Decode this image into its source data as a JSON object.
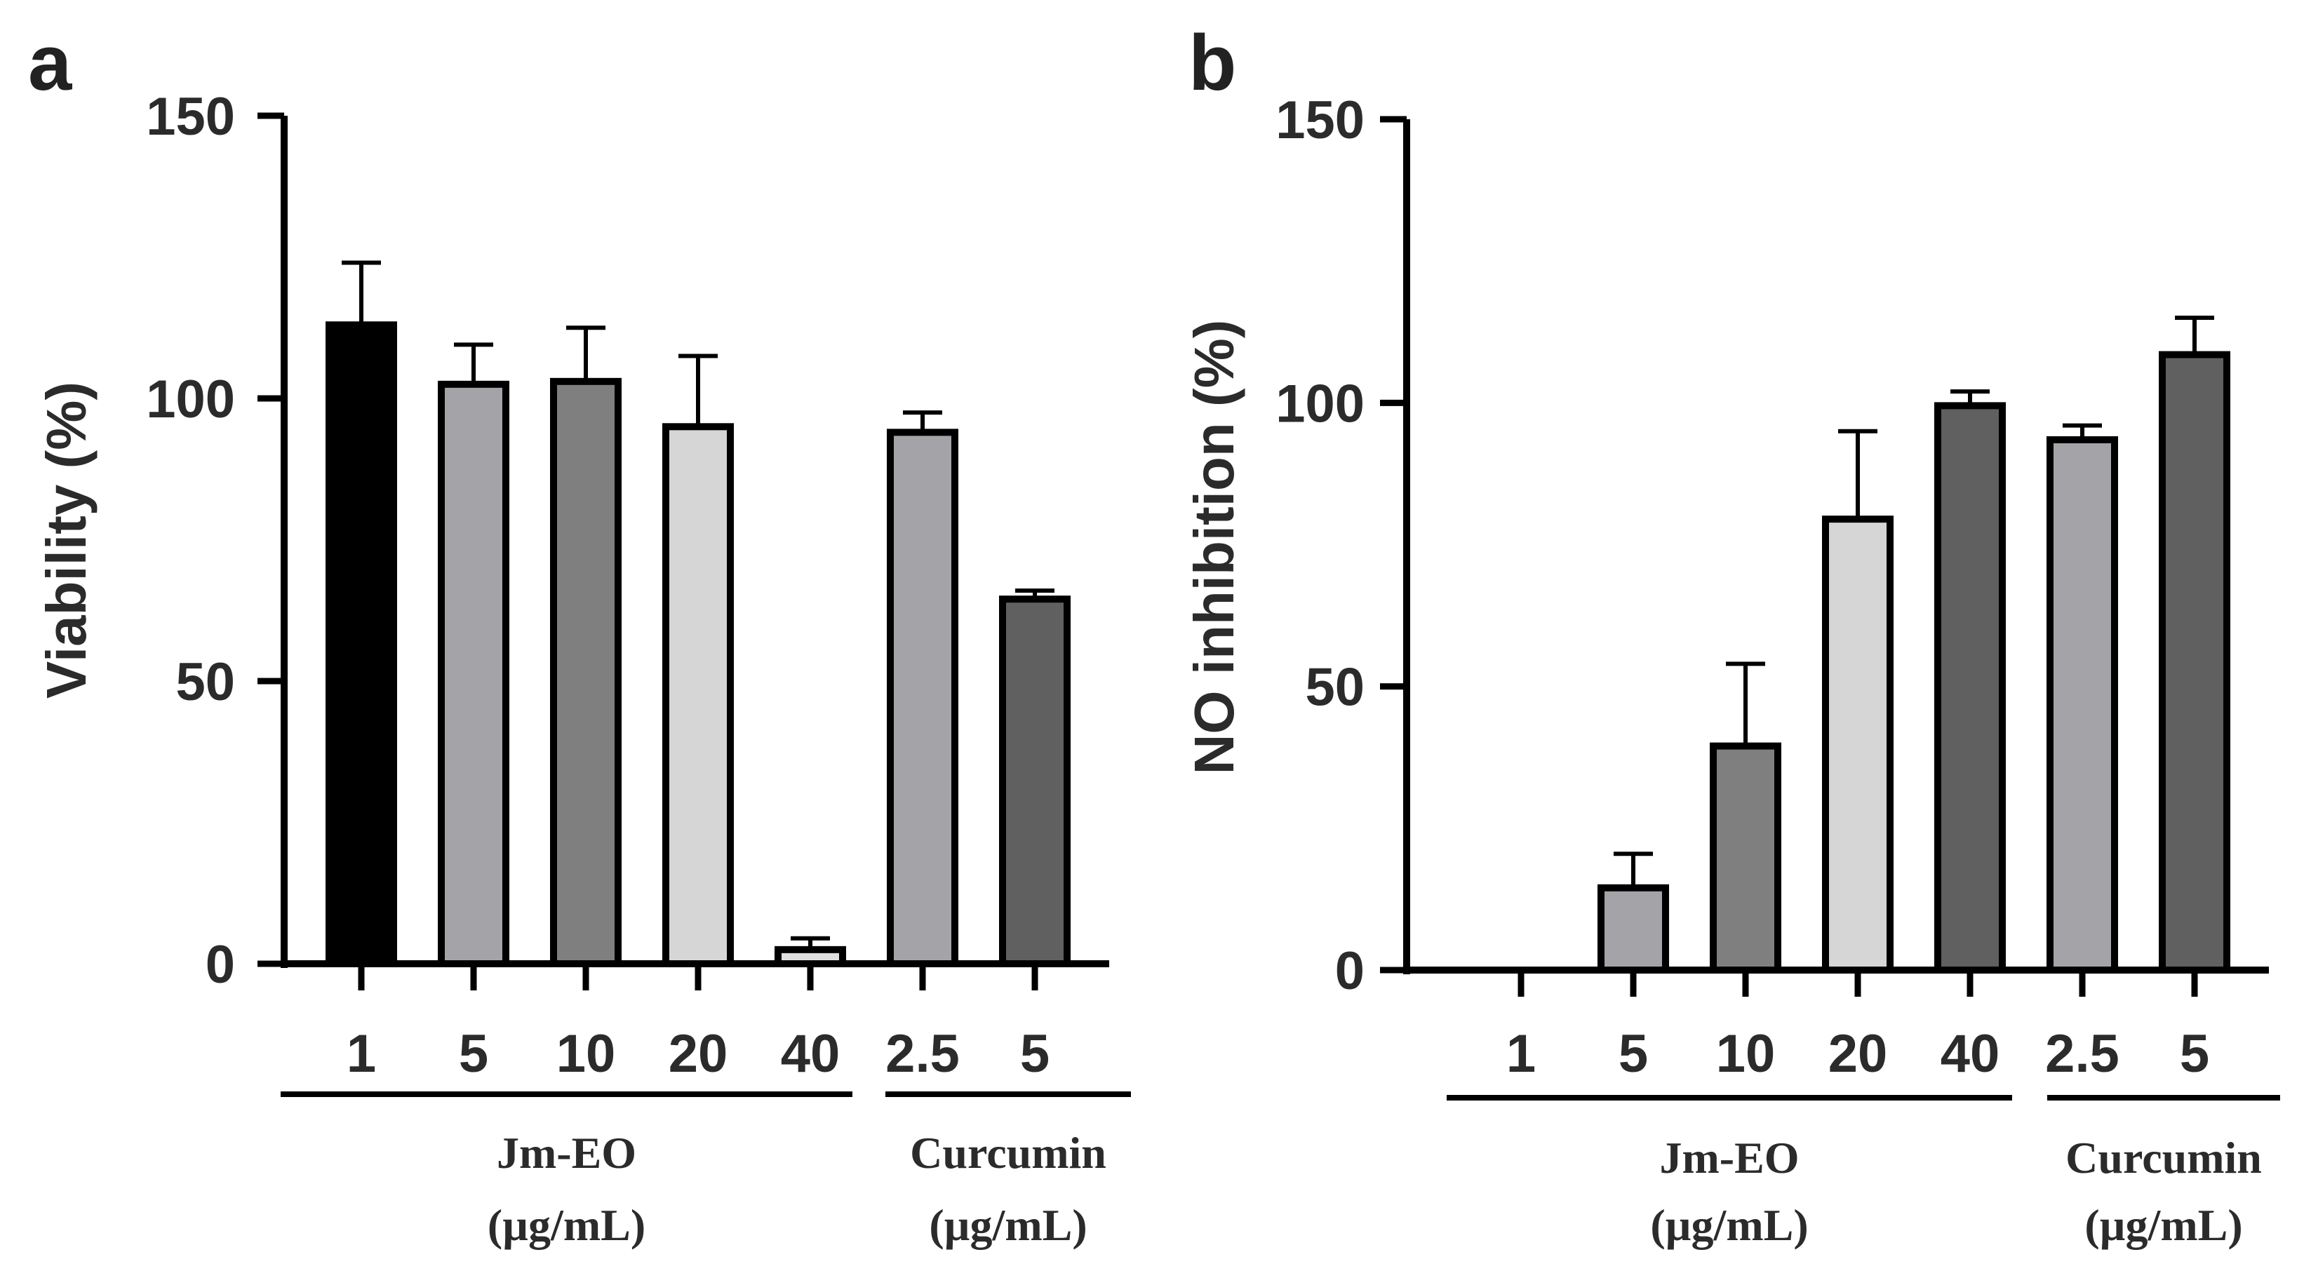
{
  "chart_data": [
    {
      "panel": "a",
      "type": "bar",
      "ylabel": "Viability (%)",
      "ylim": [
        0,
        150
      ],
      "yticks": [
        0,
        50,
        100,
        150
      ],
      "categories": [
        "1",
        "5",
        "10",
        "20",
        "40",
        "2.5",
        "5"
      ],
      "values": [
        113,
        102.5,
        103,
        95,
        2.5,
        94,
        64.5
      ],
      "errors": [
        11,
        7,
        9.5,
        12.5,
        2,
        3.5,
        1.5
      ],
      "bar_colors": [
        "#000000",
        "#a3a3a8",
        "#7f7f7f",
        "#d6d6d6",
        "#e0e0e0",
        "#a3a3a8",
        "#606060"
      ],
      "groups": [
        {
          "name": "Jm-EO",
          "unit": "(µg/mL)",
          "span": [
            0,
            4
          ]
        },
        {
          "name": "Curcumin",
          "unit": "(µg/mL)",
          "span": [
            5,
            6
          ]
        }
      ]
    },
    {
      "panel": "b",
      "type": "bar",
      "ylabel": "NO inhibition (%)",
      "ylim": [
        0,
        150
      ],
      "yticks": [
        0,
        50,
        100,
        150
      ],
      "categories": [
        "1",
        "5",
        "10",
        "20",
        "40",
        "2.5",
        "5"
      ],
      "values": [
        0,
        14.5,
        39.5,
        79.5,
        99.5,
        93.5,
        108.5
      ],
      "errors": [
        0,
        6,
        14.5,
        15.5,
        2.5,
        2.5,
        6.5
      ],
      "bar_colors": [
        "#000000",
        "#a3a3a8",
        "#7f7f7f",
        "#d6d6d6",
        "#606060",
        "#a3a3a8",
        "#606060"
      ],
      "groups": [
        {
          "name": "Jm-EO",
          "unit": "(µg/mL)",
          "span": [
            0,
            4
          ]
        },
        {
          "name": "Curcumin",
          "unit": "(µg/mL)",
          "span": [
            5,
            6
          ]
        }
      ]
    }
  ]
}
